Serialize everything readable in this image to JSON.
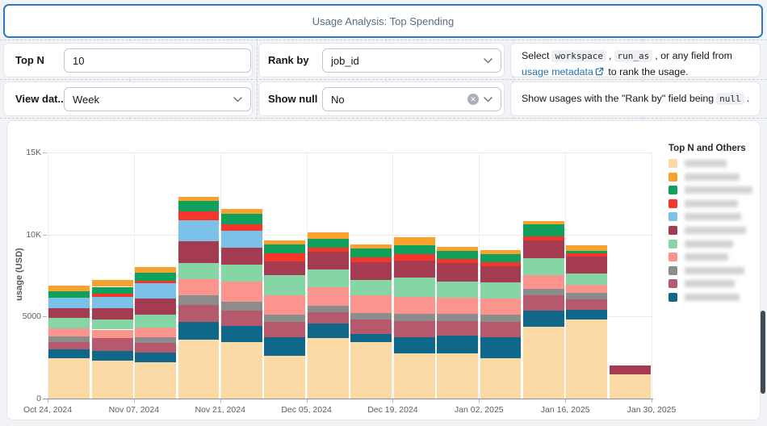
{
  "header": {
    "title": "Usage Analysis: Top Spending"
  },
  "filters": {
    "top_n": {
      "label": "Top N",
      "value": "10"
    },
    "rank_by": {
      "label": "Rank by",
      "value": "job_id"
    },
    "view_date": {
      "label": "View dat...",
      "value": "Week"
    },
    "show_null": {
      "label": "Show null",
      "value": "No"
    },
    "rank_by_help": {
      "part1": "Select",
      "code1": "workspace",
      "comma": ",",
      "code2": "run_as",
      "part2": ", or any field from",
      "link1": "usage",
      "link2": "metadata",
      "part3": "to rank the usage."
    },
    "show_null_help": {
      "part1": "Show usages with the \"Rank by\" field being",
      "code": "null",
      "part2": "."
    }
  },
  "chart_data": {
    "type": "bar",
    "stacked": true,
    "ylabel": "usage (USD)",
    "ylim": [
      0,
      15000
    ],
    "ytick_values": [
      0,
      5000,
      10000,
      15000
    ],
    "ytick_labels": [
      "0",
      "5000",
      "10K",
      "15K"
    ],
    "x_axis_labels": [
      "Oct 24, 2024",
      "Nov 07, 2024",
      "Nov 21, 2024",
      "Dec 05, 2024",
      "Dec 19, 2024",
      "Jan 02, 2025",
      "Jan 16, 2025",
      "Jan 30, 2025"
    ],
    "categories": [
      "Oct 24",
      "Oct 31",
      "Nov 07",
      "Nov 14",
      "Nov 21",
      "Nov 28",
      "Dec 05",
      "Dec 12",
      "Dec 19",
      "Dec 26",
      "Jan 02",
      "Jan 09",
      "Jan 16",
      "Jan 23"
    ],
    "legend_title": "Top N and Others",
    "legend_labels_blurred": true,
    "stack_order": [
      0,
      10,
      9,
      8,
      7,
      6,
      5,
      4,
      3,
      2,
      1
    ],
    "grid": true,
    "legend_position": "right",
    "series": [
      {
        "name": "series-cream",
        "color": "#FBD9A5",
        "blur_width": 52,
        "values": [
          2450,
          2300,
          2200,
          3600,
          3450,
          2600,
          3680,
          3430,
          2775,
          2750,
          2475,
          4400,
          4850,
          1500
        ]
      },
      {
        "name": "series-orange",
        "color": "#F8A12F",
        "blur_width": 68,
        "values": [
          350,
          400,
          350,
          280,
          250,
          250,
          380,
          280,
          490,
          250,
          250,
          200,
          350,
          0
        ]
      },
      {
        "name": "series-green",
        "color": "#0FA05C",
        "blur_width": 84,
        "values": [
          410,
          430,
          500,
          610,
          660,
          540,
          540,
          540,
          525,
          525,
          500,
          750,
          150,
          0
        ]
      },
      {
        "name": "series-red",
        "color": "#F6352B",
        "blur_width": 66,
        "values": [
          0,
          200,
          150,
          540,
          410,
          490,
          280,
          280,
          375,
          245,
          250,
          250,
          200,
          0
        ]
      },
      {
        "name": "series-lightblue",
        "color": "#7CC2E8",
        "blur_width": 70,
        "values": [
          610,
          690,
          950,
          1310,
          1035,
          0,
          0,
          0,
          0,
          0,
          0,
          0,
          0,
          0
        ]
      },
      {
        "name": "series-maroon",
        "color": "#A43B51",
        "blur_width": 76,
        "values": [
          620,
          660,
          1000,
          1315,
          1020,
          850,
          1070,
          1080,
          1065,
          1100,
          1000,
          1100,
          1000,
          530
        ]
      },
      {
        "name": "series-lightgreen",
        "color": "#85D5A5",
        "blur_width": 60,
        "values": [
          610,
          630,
          750,
          985,
          1015,
          1235,
          1070,
          935,
          1150,
          1000,
          950,
          1000,
          700,
          0
        ]
      },
      {
        "name": "series-salmon",
        "color": "#FA948D",
        "blur_width": 54,
        "values": [
          510,
          500,
          600,
          985,
          1250,
          1150,
          1150,
          1070,
          1065,
          1000,
          1000,
          850,
          500,
          0
        ]
      },
      {
        "name": "series-gray",
        "color": "#8C8C8C",
        "blur_width": 74,
        "values": [
          360,
          0,
          350,
          575,
          520,
          490,
          380,
          410,
          410,
          400,
          450,
          400,
          400,
          0
        ]
      },
      {
        "name": "series-mauve",
        "color": "#B6596D",
        "blur_width": 62,
        "values": [
          440,
          790,
          600,
          1065,
          955,
          905,
          690,
          900,
          985,
          900,
          950,
          950,
          650,
          0
        ]
      },
      {
        "name": "series-teal",
        "color": "#0F6889",
        "blur_width": 68,
        "values": [
          540,
          620,
          600,
          1070,
          985,
          1150,
          900,
          490,
          985,
          1100,
          1250,
          950,
          550,
          0
        ]
      }
    ]
  }
}
